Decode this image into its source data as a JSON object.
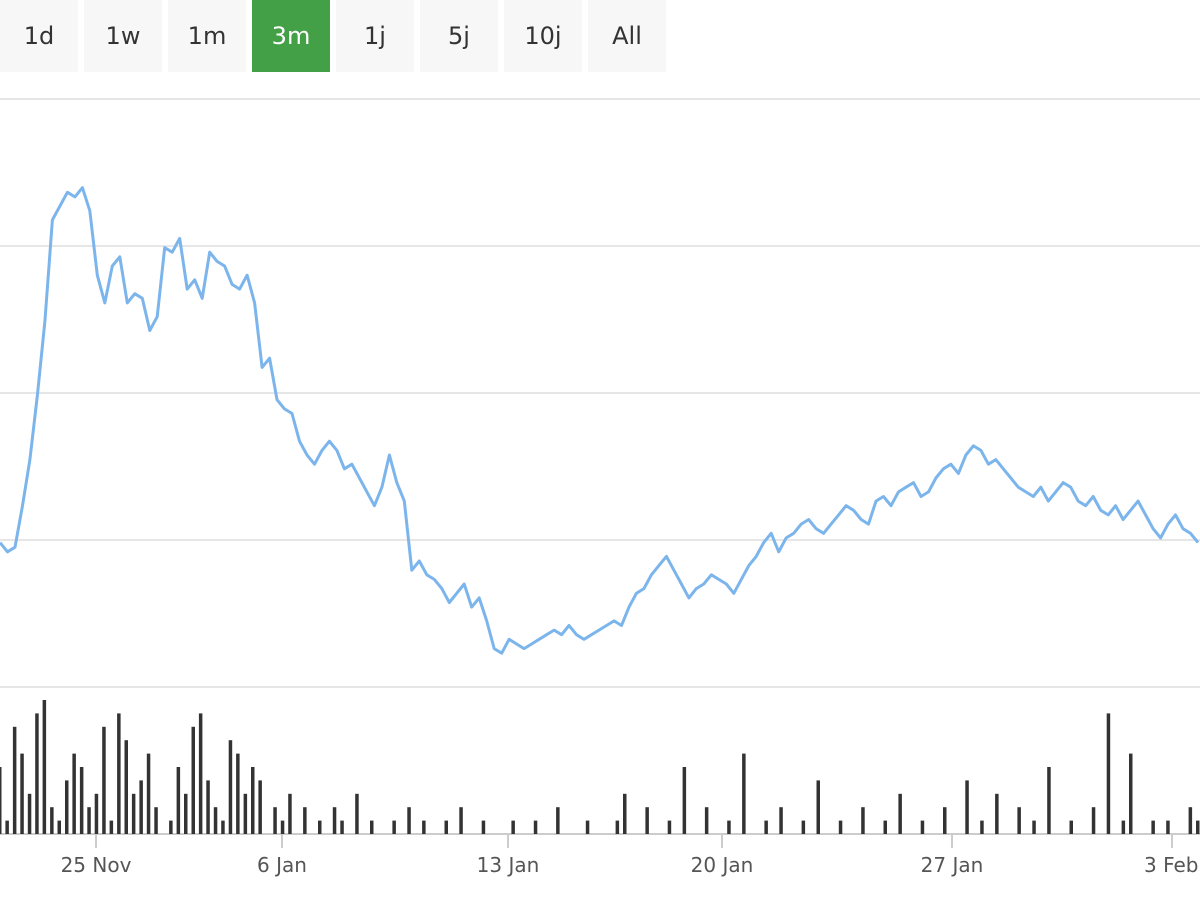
{
  "range_selector": {
    "buttons": [
      {
        "label": "1d",
        "active": false
      },
      {
        "label": "1w",
        "active": false
      },
      {
        "label": "1m",
        "active": false
      },
      {
        "label": "3m",
        "active": true
      },
      {
        "label": "1j",
        "active": false
      },
      {
        "label": "5j",
        "active": false
      },
      {
        "label": "10j",
        "active": false
      },
      {
        "label": "All",
        "active": false
      }
    ],
    "active_color": "#43a047"
  },
  "chart_data": {
    "type": "line",
    "title": "",
    "xlabel": "",
    "ylabel": "",
    "grid": true,
    "y_axis_labels": false,
    "x_ticks": [
      {
        "label": "25 Nov",
        "date": "2019-11-25"
      },
      {
        "label": "6 Jan",
        "date": "2020-01-06"
      },
      {
        "label": "13 Jan",
        "date": "2020-01-13"
      },
      {
        "label": "20 Jan",
        "date": "2020-01-20"
      },
      {
        "label": "27 Jan",
        "date": "2020-01-27"
      },
      {
        "label": "3 Feb",
        "date": "2020-02-03"
      }
    ],
    "series": [
      {
        "color": "#7cb5ec",
        "values": [
          2.7,
          2.5,
          2.6,
          3.5,
          4.5,
          5.9,
          7.5,
          9.7,
          10.0,
          10.3,
          10.2,
          10.4,
          9.9,
          8.5,
          7.9,
          8.7,
          8.9,
          7.9,
          8.1,
          8.0,
          7.3,
          7.6,
          9.1,
          9.0,
          9.3,
          8.2,
          8.4,
          8.0,
          9.0,
          8.8,
          8.7,
          8.3,
          8.2,
          8.5,
          7.9,
          6.5,
          6.7,
          5.8,
          5.6,
          5.5,
          4.9,
          4.6,
          4.4,
          4.7,
          4.9,
          4.7,
          4.3,
          4.4,
          4.1,
          3.8,
          3.5,
          3.9,
          4.6,
          4.0,
          3.6,
          2.1,
          2.3,
          2.0,
          1.9,
          1.7,
          1.4,
          1.6,
          1.8,
          1.3,
          1.5,
          1.0,
          0.4,
          0.3,
          0.6,
          0.5,
          0.4,
          0.5,
          0.6,
          0.7,
          0.8,
          0.7,
          0.9,
          0.7,
          0.6,
          0.7,
          0.8,
          0.9,
          1.0,
          0.9,
          1.3,
          1.6,
          1.7,
          2.0,
          2.2,
          2.4,
          2.1,
          1.8,
          1.5,
          1.7,
          1.8,
          2.0,
          1.9,
          1.8,
          1.6,
          1.9,
          2.2,
          2.4,
          2.7,
          2.9,
          2.5,
          2.8,
          2.9,
          3.1,
          3.2,
          3.0,
          2.9,
          3.1,
          3.3,
          3.5,
          3.4,
          3.2,
          3.1,
          3.6,
          3.7,
          3.5,
          3.8,
          3.9,
          4.0,
          3.7,
          3.8,
          4.1,
          4.3,
          4.4,
          4.2,
          4.6,
          4.8,
          4.7,
          4.4,
          4.5,
          4.3,
          4.1,
          3.9,
          3.8,
          3.7,
          3.9,
          3.6,
          3.8,
          4.0,
          3.9,
          3.6,
          3.5,
          3.7,
          3.4,
          3.3,
          3.5,
          3.2,
          3.4,
          3.6,
          3.3,
          3.0,
          2.8,
          3.1,
          3.3,
          3.0,
          2.9,
          2.7
        ]
      }
    ],
    "volume_series": {
      "color": "#333333",
      "values": [
        0.5,
        0.1,
        0.8,
        0.6,
        0.3,
        0.9,
        1.0,
        0.2,
        0.1,
        0.4,
        0.6,
        0.5,
        0.2,
        0.3,
        0.8,
        0.1,
        0.9,
        0.7,
        0.3,
        0.4,
        0.6,
        0.2,
        0.0,
        0.1,
        0.5,
        0.3,
        0.8,
        0.9,
        0.4,
        0.2,
        0.1,
        0.7,
        0.6,
        0.3,
        0.5,
        0.4,
        0.0,
        0.2,
        0.1,
        0.3,
        0.0,
        0.2,
        0.0,
        0.1,
        0.0,
        0.2,
        0.1,
        0.0,
        0.3,
        0.0,
        0.1,
        0.0,
        0.0,
        0.1,
        0.0,
        0.2,
        0.0,
        0.1,
        0.0,
        0.0,
        0.1,
        0.0,
        0.2,
        0.0,
        0.0,
        0.1,
        0.0,
        0.0,
        0.0,
        0.1,
        0.0,
        0.0,
        0.1,
        0.0,
        0.0,
        0.2,
        0.0,
        0.0,
        0.0,
        0.1,
        0.0,
        0.0,
        0.0,
        0.1,
        0.3,
        0.0,
        0.0,
        0.2,
        0.0,
        0.0,
        0.1,
        0.0,
        0.5,
        0.0,
        0.0,
        0.2,
        0.0,
        0.0,
        0.1,
        0.0,
        0.6,
        0.0,
        0.0,
        0.1,
        0.0,
        0.2,
        0.0,
        0.0,
        0.1,
        0.0,
        0.4,
        0.0,
        0.0,
        0.1,
        0.0,
        0.0,
        0.2,
        0.0,
        0.0,
        0.1,
        0.0,
        0.3,
        0.0,
        0.0,
        0.1,
        0.0,
        0.0,
        0.2,
        0.0,
        0.0,
        0.4,
        0.0,
        0.1,
        0.0,
        0.3,
        0.0,
        0.0,
        0.2,
        0.0,
        0.1,
        0.0,
        0.5,
        0.0,
        0.0,
        0.1,
        0.0,
        0.0,
        0.2,
        0.0,
        0.9,
        0.0,
        0.1,
        0.6,
        0.0,
        0.0,
        0.1,
        0.0,
        0.1,
        0.0,
        0.0,
        0.2,
        0.1
      ]
    }
  }
}
